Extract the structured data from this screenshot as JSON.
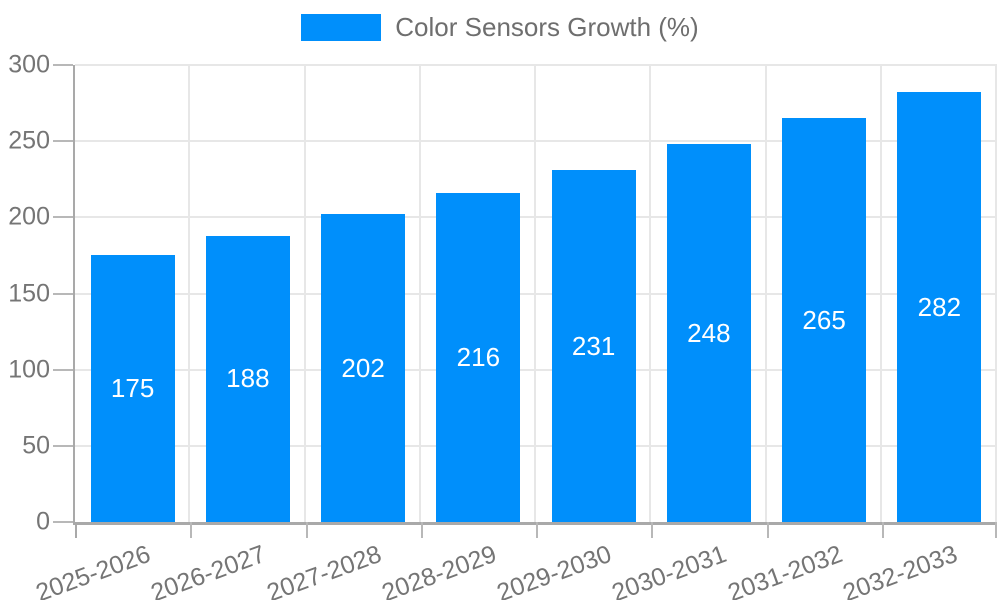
{
  "legend": {
    "items": [
      {
        "label": "Color Sensors Growth (%)",
        "color": "#008FFB"
      }
    ]
  },
  "chart_data": {
    "type": "bar",
    "title": "",
    "categories": [
      "2025-2026",
      "2026-2027",
      "2027-2028",
      "2028-2029",
      "2029-2030",
      "2030-2031",
      "2031-2032",
      "2032-2033"
    ],
    "series": [
      {
        "name": "Color Sensors Growth (%)",
        "values": [
          175,
          188,
          202,
          216,
          231,
          248,
          265,
          282
        ],
        "color": "#008FFB"
      }
    ],
    "xlabel": "",
    "ylabel": "",
    "ylim": [
      0,
      300
    ],
    "yticks": [
      0,
      50,
      100,
      150,
      200,
      250,
      300
    ],
    "grid": true,
    "legend_position": "top",
    "data_labels": {
      "show": true,
      "position": "center",
      "color": "#FFFFFF"
    },
    "x_label_rotation_deg": -20
  },
  "colors": {
    "background": "#FFFFFF",
    "bar": "#008FFB",
    "grid_line": "#E7E7E7",
    "axis_line": "#A9A9A9",
    "tick_mark": "#B8B8B8",
    "axis_label": "#757575",
    "legend_text": "#6E6E6E",
    "data_label": "#FFFFFF"
  }
}
